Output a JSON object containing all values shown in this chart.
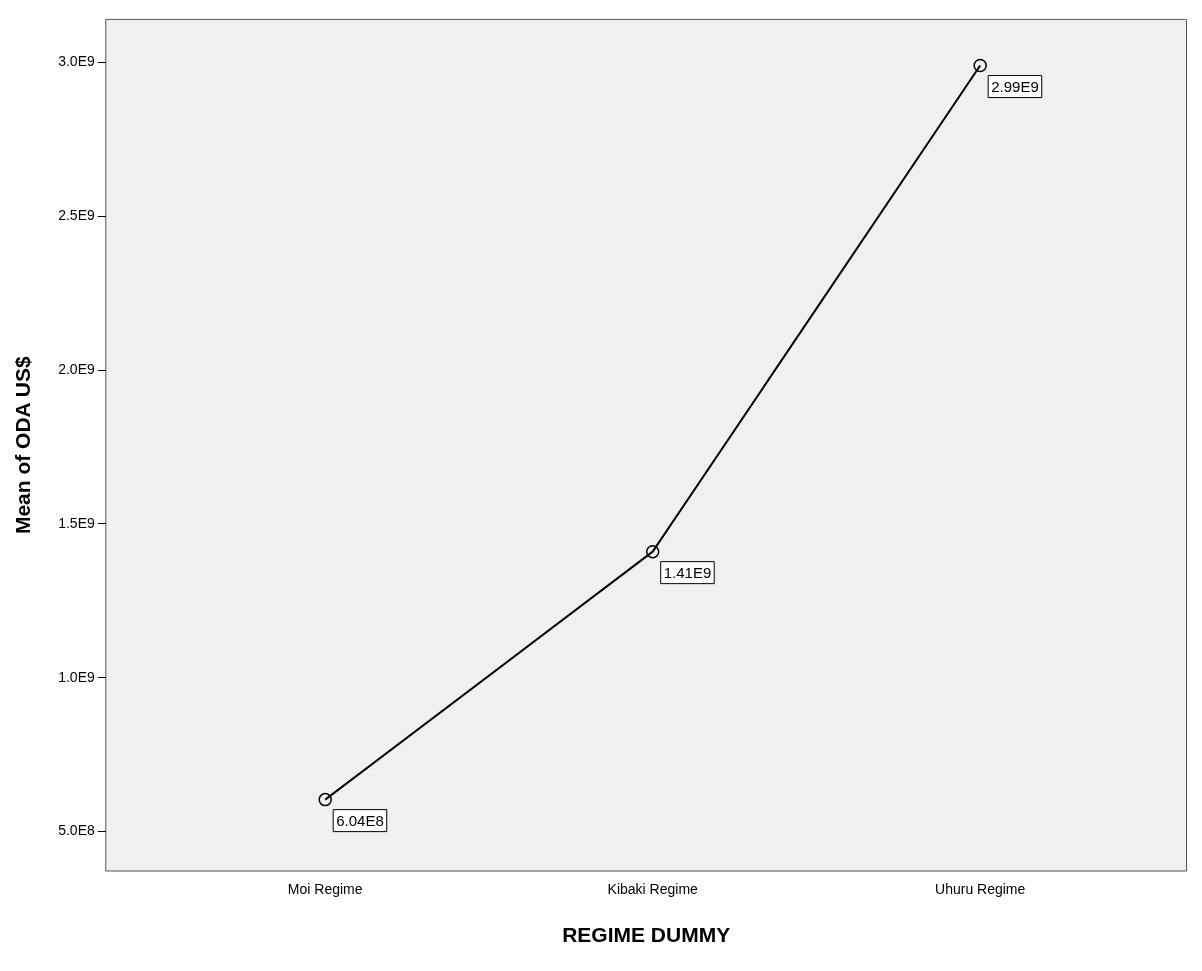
{
  "chart_data": {
    "type": "line",
    "xlabel": "REGIME DUMMY",
    "ylabel": "Mean of ODA US$",
    "categories": [
      "Moi Regime",
      "Kibaki Regime",
      "Uhuru Regime"
    ],
    "values": [
      604000000,
      1410000000,
      2990000000
    ],
    "value_labels": [
      "6.04E8",
      "1.41E9",
      "2.99E9"
    ],
    "color": "#000000",
    "marker": "circle",
    "line_style": "solid",
    "grid": false,
    "legend": false,
    "ylim": [
      372000000,
      3140000000
    ],
    "yticks": [
      {
        "value": 500000000,
        "label": "5.0E8"
      },
      {
        "value": 1000000000,
        "label": "1.0E9"
      },
      {
        "value": 1500000000,
        "label": "1.5E9"
      },
      {
        "value": 2000000000,
        "label": "2.0E9"
      },
      {
        "value": 2500000000,
        "label": "2.5E9"
      },
      {
        "value": 3000000000,
        "label": "3.0E9"
      }
    ]
  }
}
